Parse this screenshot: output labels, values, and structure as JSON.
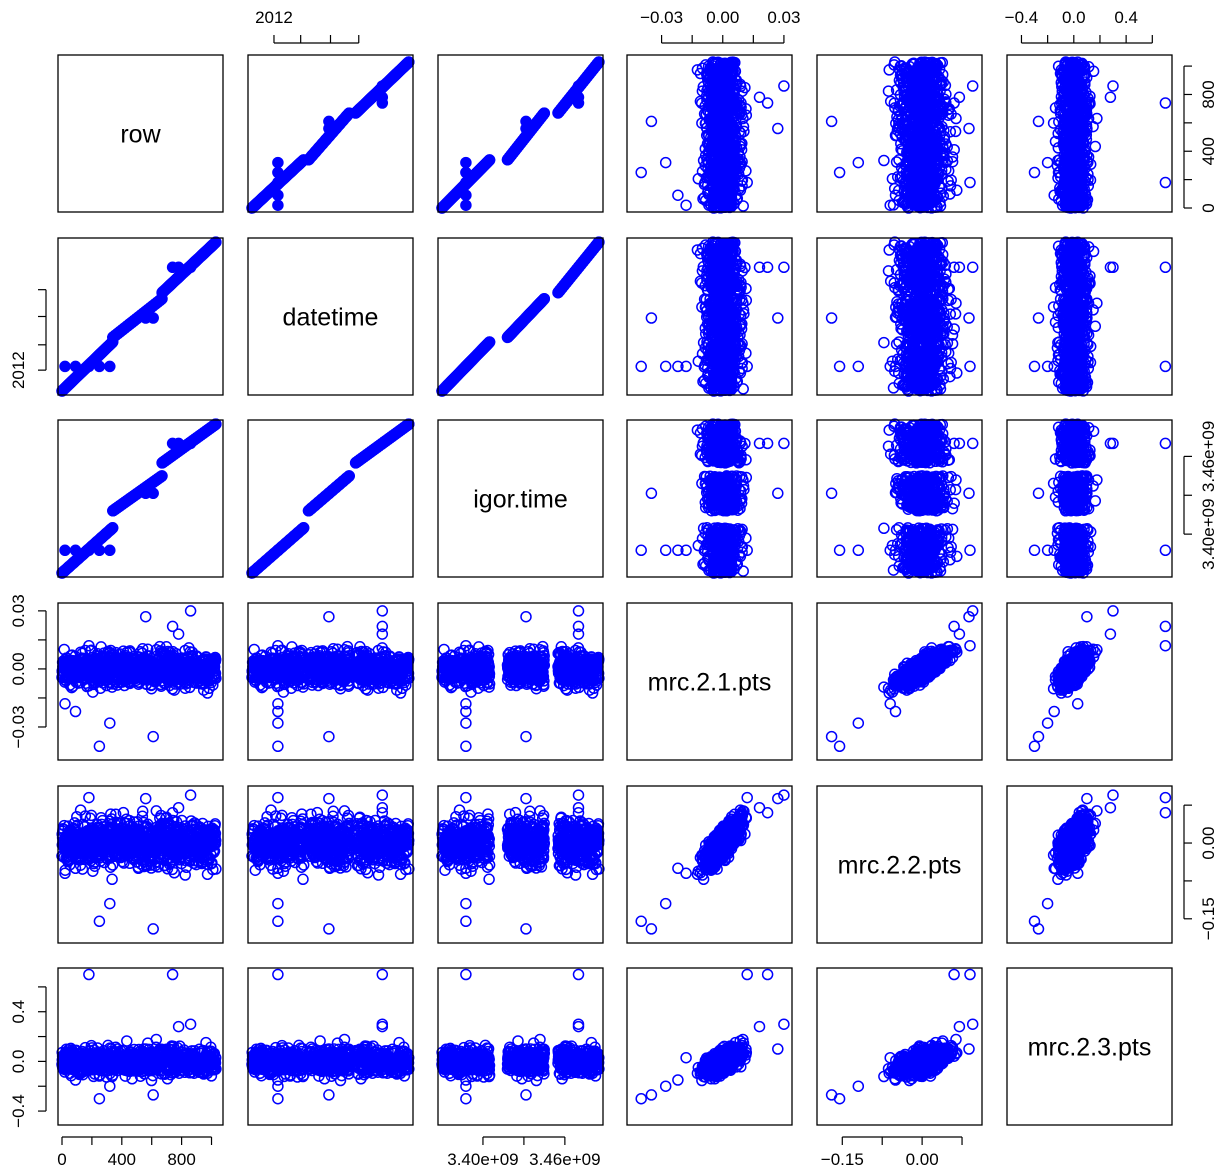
{
  "chart_data": {
    "type": "scatter",
    "title": "",
    "variables": [
      "row",
      "datetime",
      "igor.time",
      "mrc.2.1.pts",
      "mrc.2.2.pts",
      "mrc.2.3.pts"
    ],
    "point_color": "#0000FF",
    "marker": "open-circle",
    "grid": false,
    "ranges": {
      "row": [
        0,
        1050
      ],
      "datetime": [
        0,
        1
      ],
      "igor.time": [
        3370000000.0,
        3485000000.0
      ],
      "mrc.2.1.pts": [
        -0.045,
        0.032
      ],
      "mrc.2.2.pts": [
        -0.19,
        0.105
      ],
      "mrc.2.3.pts": [
        -0.48,
        0.72
      ]
    },
    "axis_ticks": {
      "row": {
        "values": [
          0,
          200,
          400,
          600,
          800,
          1000
        ],
        "labels": [
          "0",
          "",
          "400",
          "",
          "800",
          ""
        ]
      },
      "datetime": {
        "values": [
          0.14,
          0.31,
          0.5,
          0.68
        ],
        "labels": [
          "2012",
          "",
          "",
          ""
        ]
      },
      "igor.time": {
        "values": [
          3400000000.0,
          3430000000.0,
          3460000000.0
        ],
        "labels": [
          "3.40e+09",
          "",
          "3.46e+09"
        ]
      },
      "mrc.2.1.pts": {
        "values": [
          -0.03,
          -0.015,
          0.0,
          0.015,
          0.03
        ],
        "labels": [
          "−0.03",
          "",
          "0.00",
          "",
          "0.03"
        ]
      },
      "mrc.2.2.pts": {
        "values": [
          -0.15,
          -0.075,
          0.0,
          0.075
        ],
        "labels": [
          "−0.15",
          "",
          "0.00",
          ""
        ]
      },
      "mrc.2.3.pts": {
        "values": [
          -0.4,
          -0.2,
          0.0,
          0.2,
          0.4,
          0.6
        ],
        "labels": [
          "−0.4",
          "",
          "0.0",
          "",
          "0.4",
          ""
        ]
      }
    },
    "segments": {
      "datetime": [
        [
          0.0,
          0.33
        ],
        [
          0.36,
          0.62
        ],
        [
          0.66,
          1.0
        ]
      ],
      "igor.time": [
        [
          3370000000.0,
          3405000000.0
        ],
        [
          3418000000.0,
          3445000000.0
        ],
        [
          3455000000.0,
          3485000000.0
        ]
      ]
    },
    "noise": {
      "mrc.2.1.pts": {
        "sd": 0.0065
      },
      "mrc.2.2.pts": {
        "sd": 0.032
      },
      "mrc.2.3.pts": {
        "sd": 0.07
      }
    },
    "outliers": [
      {
        "row": 20,
        "mrc.2.1.pts": -0.018,
        "mrc.2.2.pts": -0.06,
        "mrc.2.3.pts": 0.03
      },
      {
        "row": 180,
        "mrc.2.1.pts": 0.012,
        "mrc.2.2.pts": 0.09,
        "mrc.2.3.pts": 0.7
      },
      {
        "row": 250,
        "mrc.2.1.pts": -0.04,
        "mrc.2.2.pts": -0.155,
        "mrc.2.3.pts": -0.3
      },
      {
        "row": 560,
        "mrc.2.1.pts": 0.027,
        "mrc.2.2.pts": 0.088,
        "mrc.2.3.pts": 0.1
      },
      {
        "row": 610,
        "mrc.2.1.pts": -0.035,
        "mrc.2.2.pts": -0.17,
        "mrc.2.3.pts": -0.27
      },
      {
        "row": 740,
        "mrc.2.1.pts": 0.022,
        "mrc.2.2.pts": 0.06,
        "mrc.2.3.pts": 0.7
      },
      {
        "row": 860,
        "mrc.2.1.pts": 0.03,
        "mrc.2.2.pts": 0.095,
        "mrc.2.3.pts": 0.3
      },
      {
        "row": 320,
        "mrc.2.1.pts": -0.028,
        "mrc.2.2.pts": -0.12,
        "mrc.2.3.pts": -0.2
      },
      {
        "row": 780,
        "mrc.2.1.pts": 0.018,
        "mrc.2.2.pts": 0.07,
        "mrc.2.3.pts": 0.28
      },
      {
        "row": 90,
        "mrc.2.1.pts": -0.022,
        "mrc.2.2.pts": -0.05,
        "mrc.2.3.pts": -0.15
      }
    ]
  }
}
